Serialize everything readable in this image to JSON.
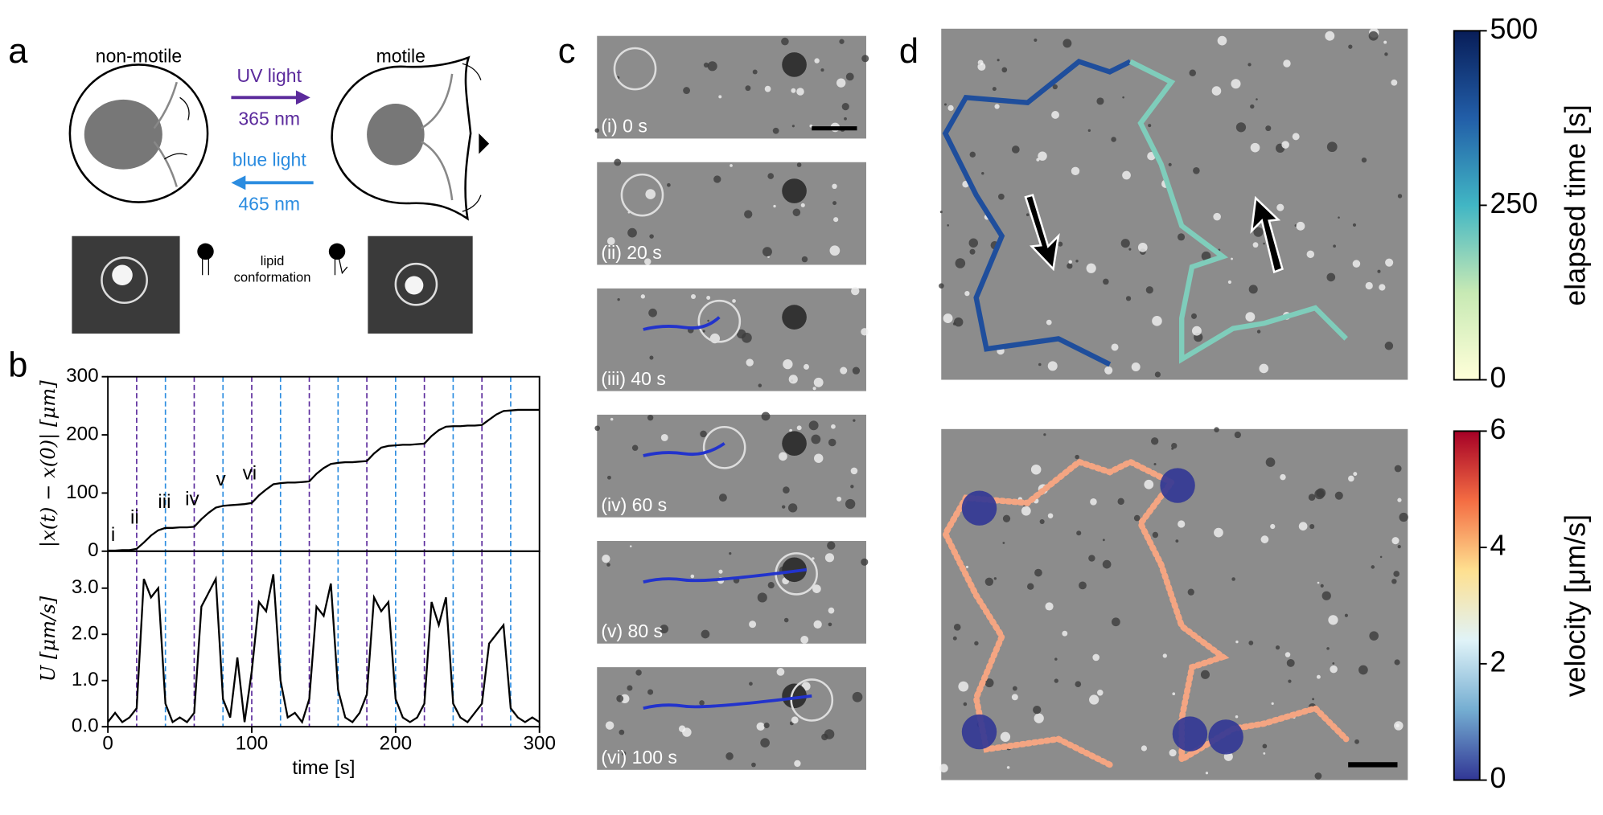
{
  "panels": {
    "a": {
      "label": "a",
      "left_state": "non-motile",
      "right_state": "motile",
      "uv_text": "UV light",
      "uv_wavelength": "365 nm",
      "blue_text": "blue light",
      "blue_wavelength": "465 nm",
      "lipid_line1": "lipid",
      "lipid_line2": "conformation"
    },
    "b": {
      "label": "b"
    },
    "c": {
      "label": "c",
      "frames": [
        "(i) 0 s",
        "(ii) 20 s",
        "(iii) 40 s",
        "(iv) 60 s",
        "(v) 80 s",
        "(vi) 100 s"
      ]
    },
    "d": {
      "label": "d"
    }
  },
  "chart_data": [
    {
      "type": "line",
      "ylabel": "|x(t) − x(0)| [μm]",
      "x": [
        0,
        5,
        10,
        15,
        20,
        25,
        30,
        35,
        40,
        45,
        50,
        55,
        60,
        65,
        70,
        75,
        80,
        85,
        90,
        95,
        100,
        105,
        110,
        115,
        120,
        125,
        130,
        135,
        140,
        145,
        150,
        155,
        160,
        165,
        170,
        175,
        180,
        185,
        190,
        195,
        200,
        205,
        210,
        215,
        220,
        225,
        230,
        235,
        240,
        245,
        250,
        255,
        260,
        265,
        270,
        275,
        280,
        285,
        290,
        295,
        300
      ],
      "series": [
        {
          "color": "#000000",
          "values": [
            1,
            1,
            2,
            2,
            4,
            15,
            27,
            36,
            40,
            40,
            41,
            41,
            42,
            55,
            66,
            75,
            78,
            79,
            80,
            81,
            83,
            96,
            106,
            115,
            117,
            118,
            118,
            119,
            120,
            133,
            143,
            150,
            152,
            153,
            153,
            154,
            155,
            168,
            178,
            181,
            182,
            183,
            183,
            184,
            185,
            198,
            208,
            214,
            215,
            215,
            216,
            216,
            217,
            226,
            235,
            241,
            242,
            243,
            243,
            243,
            243
          ]
        }
      ],
      "xlim": [
        0,
        300
      ],
      "ylim": [
        0,
        300
      ],
      "yticks": [
        0,
        100,
        200,
        300
      ],
      "uv_times": [
        20,
        60,
        100,
        140,
        180,
        220,
        260
      ],
      "uv_color": "#5b2a9c",
      "blue_times": [
        40,
        80,
        120,
        160,
        200,
        240,
        280
      ],
      "blue_color": "#2b8ce0",
      "annotations": [
        "i",
        "ii",
        "iii",
        "iv",
        "v",
        "vi"
      ]
    },
    {
      "type": "line",
      "ylabel": "U [μm/s]",
      "xlabel": "time [s]",
      "x": [
        0,
        5,
        10,
        15,
        20,
        25,
        30,
        35,
        40,
        45,
        50,
        55,
        60,
        65,
        70,
        75,
        80,
        85,
        90,
        95,
        100,
        105,
        110,
        115,
        120,
        125,
        130,
        135,
        140,
        145,
        150,
        155,
        160,
        165,
        170,
        175,
        180,
        185,
        190,
        195,
        200,
        205,
        210,
        215,
        220,
        225,
        230,
        235,
        240,
        245,
        250,
        255,
        260,
        265,
        270,
        275,
        280,
        285,
        290,
        295,
        300
      ],
      "series": [
        {
          "color": "#000000",
          "values": [
            0.1,
            0.3,
            0.1,
            0.2,
            0.4,
            3.2,
            2.8,
            3.0,
            0.5,
            0.1,
            0.2,
            0.1,
            0.3,
            2.6,
            2.9,
            3.2,
            0.6,
            0.2,
            1.5,
            0.1,
            1.2,
            2.7,
            2.5,
            3.3,
            1.0,
            0.2,
            0.3,
            0.1,
            0.6,
            2.6,
            2.4,
            3.1,
            0.8,
            0.2,
            0.1,
            0.3,
            0.7,
            2.8,
            2.5,
            2.7,
            0.6,
            0.2,
            0.1,
            0.2,
            0.5,
            2.7,
            2.2,
            2.8,
            0.5,
            0.2,
            0.1,
            0.3,
            0.5,
            1.8,
            2.0,
            2.2,
            0.4,
            0.2,
            0.1,
            0.2,
            0.1
          ]
        }
      ],
      "xlim": [
        0,
        300
      ],
      "ylim": [
        0,
        3.8
      ],
      "xticks": [
        0,
        100,
        200,
        300
      ],
      "yticks": [
        {
          "value": 0,
          "label": "0.0"
        },
        {
          "value": 1,
          "label": "1.0"
        },
        {
          "value": 2,
          "label": "2.0"
        },
        {
          "value": 3,
          "label": "3.0"
        }
      ],
      "uv_times": [
        20,
        60,
        100,
        140,
        180,
        220,
        260
      ],
      "uv_color": "#5b2a9c",
      "blue_times": [
        40,
        80,
        120,
        160,
        200,
        240,
        280
      ],
      "blue_color": "#2b8ce0"
    },
    {
      "type": "colorbar",
      "label": "elapsed time [s]",
      "ylim": [
        0,
        500
      ],
      "yticks": [
        0,
        250,
        500
      ],
      "colors": [
        "#ffffd9",
        "#c7e9b4",
        "#41b6c4",
        "#225ea8",
        "#081d58"
      ]
    },
    {
      "type": "colorbar",
      "label": "velocity [μm/s]",
      "ylim": [
        0,
        6
      ],
      "yticks": [
        0,
        2,
        4,
        6
      ],
      "colors": [
        "#313695",
        "#74add1",
        "#e0f3f8",
        "#fee090",
        "#f46d43",
        "#a50026"
      ]
    }
  ]
}
